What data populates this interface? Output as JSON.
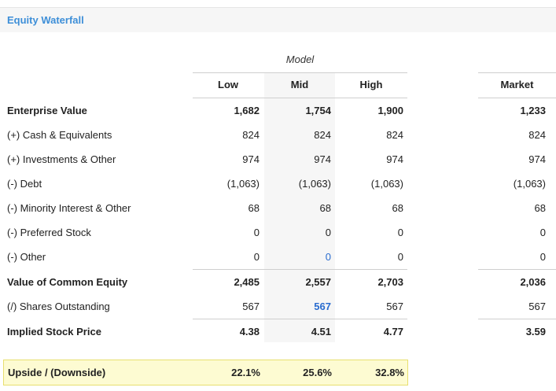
{
  "header": {
    "title": "Equity Waterfall"
  },
  "table": {
    "group_label": "Model",
    "columns": {
      "low": "Low",
      "mid": "Mid",
      "high": "High",
      "market": "Market"
    },
    "rows": [
      {
        "label": "Enterprise Value",
        "low": "1,682",
        "mid": "1,754",
        "high": "1,900",
        "market": "1,233"
      },
      {
        "label": "(+) Cash & Equivalents",
        "low": "824",
        "mid": "824",
        "high": "824",
        "market": "824"
      },
      {
        "label": "(+) Investments & Other",
        "low": "974",
        "mid": "974",
        "high": "974",
        "market": "974"
      },
      {
        "label": "(-) Debt",
        "low": "(1,063)",
        "mid": "(1,063)",
        "high": "(1,063)",
        "market": "(1,063)"
      },
      {
        "label": "(-) Minority Interest & Other",
        "low": "68",
        "mid": "68",
        "high": "68",
        "market": "68"
      },
      {
        "label": "(-) Preferred Stock",
        "low": "0",
        "mid": "0",
        "high": "0",
        "market": "0"
      },
      {
        "label": "(-) Other",
        "low": "0",
        "mid": "0",
        "high": "0",
        "market": "0"
      },
      {
        "label": "Value of Common Equity",
        "low": "2,485",
        "mid": "2,557",
        "high": "2,703",
        "market": "2,036"
      },
      {
        "label": "(/) Shares Outstanding",
        "low": "567",
        "mid": "567",
        "high": "567",
        "market": "567"
      },
      {
        "label": "Implied Stock Price",
        "low": "4.38",
        "mid": "4.51",
        "high": "4.77",
        "market": "3.59"
      }
    ],
    "upside": {
      "label": "Upside / (Downside)",
      "low": "22.1%",
      "mid": "25.6%",
      "high": "32.8%"
    }
  },
  "colors": {
    "accent": "#3e8fd8",
    "editable_value": "#2a6ccf",
    "highlight_bg": "#fdfbd2",
    "highlight_border": "#e7df6f"
  }
}
